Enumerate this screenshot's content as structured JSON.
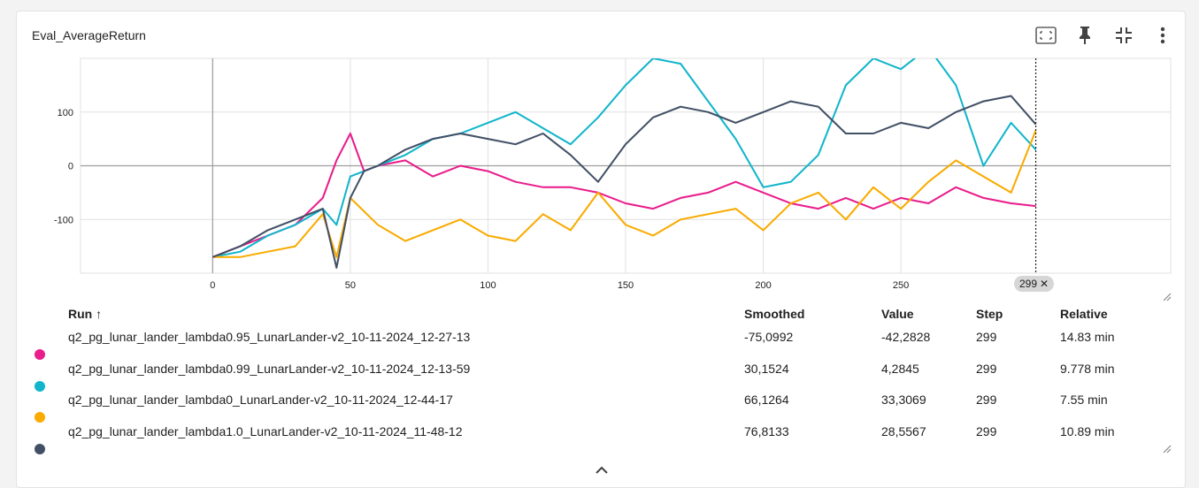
{
  "card": {
    "title": "Eval_AverageReturn"
  },
  "toolbar": [
    {
      "name": "fit-domain-button",
      "icon": "fit-to-data-icon"
    },
    {
      "name": "pin-button",
      "icon": "pin-icon"
    },
    {
      "name": "collapse-button",
      "icon": "collapse-icon"
    },
    {
      "name": "more-button",
      "icon": "more-vert-icon"
    }
  ],
  "chart_data": {
    "type": "line",
    "title": "Eval_AverageReturn",
    "xlabel": "",
    "ylabel": "",
    "xlim": [
      -48,
      348
    ],
    "ylim": [
      -200,
      200
    ],
    "x_ticks": [
      "0",
      "50",
      "100",
      "150",
      "200",
      "250"
    ],
    "y_ticks": [
      "100",
      "0",
      "-100"
    ],
    "cursor_step": "299",
    "grid": true,
    "series": [
      {
        "name": "q2_pg_lunar_lander_lambda0.95_LunarLander-v2_10-11-2024_12-27-13",
        "color": "#e91e8c",
        "x": [
          0,
          10,
          20,
          30,
          40,
          45,
          50,
          55,
          60,
          70,
          80,
          90,
          100,
          110,
          120,
          130,
          140,
          150,
          160,
          170,
          180,
          190,
          200,
          210,
          220,
          230,
          240,
          250,
          260,
          270,
          280,
          290,
          299
        ],
        "values": [
          -170,
          -150,
          -130,
          -110,
          -60,
          10,
          60,
          -10,
          0,
          10,
          -20,
          0,
          -10,
          -30,
          -40,
          -40,
          -50,
          -70,
          -80,
          -60,
          -50,
          -30,
          -50,
          -70,
          -80,
          -60,
          -80,
          -60,
          -70,
          -40,
          -60,
          -70,
          -75
        ]
      },
      {
        "name": "q2_pg_lunar_lander_lambda0.99_LunarLander-v2_10-11-2024_12-13-59",
        "color": "#12b5cb",
        "x": [
          0,
          10,
          20,
          30,
          40,
          45,
          50,
          60,
          70,
          80,
          90,
          100,
          110,
          120,
          130,
          140,
          150,
          160,
          170,
          180,
          190,
          200,
          210,
          220,
          230,
          240,
          250,
          260,
          270,
          280,
          290,
          299
        ],
        "values": [
          -170,
          -160,
          -130,
          -110,
          -80,
          -110,
          -20,
          0,
          20,
          50,
          60,
          80,
          100,
          70,
          40,
          90,
          150,
          200,
          190,
          120,
          50,
          -40,
          -30,
          20,
          150,
          200,
          180,
          220,
          150,
          0,
          80,
          30
        ]
      },
      {
        "name": "q2_pg_lunar_lander_lambda0_LunarLander-v2_10-11-2024_12-44-17",
        "color": "#f9ab00",
        "x": [
          0,
          10,
          20,
          30,
          40,
          45,
          50,
          60,
          70,
          80,
          90,
          100,
          110,
          120,
          130,
          140,
          150,
          160,
          170,
          180,
          190,
          200,
          210,
          220,
          230,
          240,
          250,
          260,
          270,
          280,
          290,
          299
        ],
        "values": [
          -170,
          -170,
          -160,
          -150,
          -90,
          -170,
          -60,
          -110,
          -140,
          -120,
          -100,
          -130,
          -140,
          -90,
          -120,
          -50,
          -110,
          -130,
          -100,
          -90,
          -80,
          -120,
          -70,
          -50,
          -100,
          -40,
          -80,
          -30,
          10,
          -20,
          -50,
          66
        ]
      },
      {
        "name": "q2_pg_lunar_lander_lambda1.0_LunarLander-v2_10-11-2024_11-48-12",
        "color": "#425066",
        "x": [
          0,
          10,
          20,
          30,
          40,
          45,
          50,
          55,
          60,
          70,
          80,
          90,
          100,
          110,
          120,
          130,
          140,
          150,
          160,
          170,
          180,
          190,
          200,
          210,
          220,
          230,
          240,
          250,
          260,
          270,
          280,
          290,
          299
        ],
        "values": [
          -170,
          -150,
          -120,
          -100,
          -80,
          -190,
          -60,
          -10,
          0,
          30,
          50,
          60,
          50,
          40,
          60,
          20,
          -30,
          40,
          90,
          110,
          100,
          80,
          100,
          120,
          110,
          60,
          60,
          80,
          70,
          100,
          120,
          130,
          77
        ]
      }
    ]
  },
  "table": {
    "headers": {
      "run": "Run ↑",
      "smoothed": "Smoothed",
      "value": "Value",
      "step": "Step",
      "relative": "Relative"
    },
    "rows": [
      {
        "color": "#e91e8c",
        "run": "q2_pg_lunar_lander_lambda0.95_LunarLander-v2_10-11-2024_12-27-13",
        "smoothed": "-75,0992",
        "value": "-42,2828",
        "step": "299",
        "relative": "14.83 min"
      },
      {
        "color": "#12b5cb",
        "run": "q2_pg_lunar_lander_lambda0.99_LunarLander-v2_10-11-2024_12-13-59",
        "smoothed": "30,1524",
        "value": "4,2845",
        "step": "299",
        "relative": "9.778 min"
      },
      {
        "color": "#f9ab00",
        "run": "q2_pg_lunar_lander_lambda0_LunarLander-v2_10-11-2024_12-44-17",
        "smoothed": "66,1264",
        "value": "33,3069",
        "step": "299",
        "relative": "7.55 min"
      },
      {
        "color": "#425066",
        "run": "q2_pg_lunar_lander_lambda1.0_LunarLander-v2_10-11-2024_11-48-12",
        "smoothed": "76,8133",
        "value": "28,5567",
        "step": "299",
        "relative": "10.89 min"
      }
    ]
  }
}
